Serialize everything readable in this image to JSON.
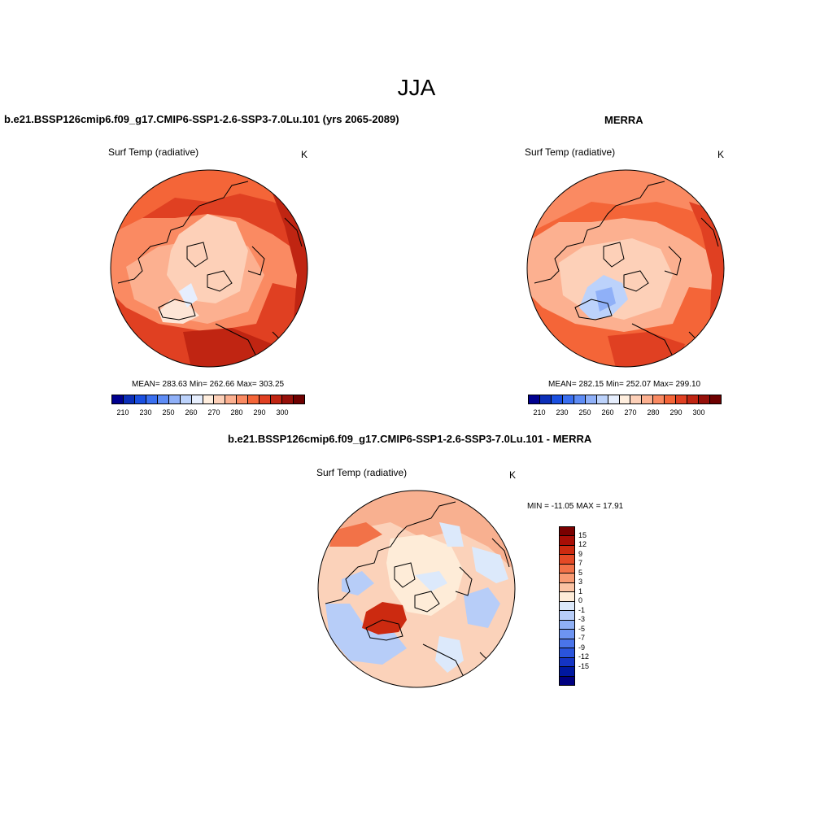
{
  "season": "JJA",
  "panels": [
    {
      "title": "b.e21.BSSP126cmip6.f09_g17.CMIP6-SSP1-2.6-SSP3-7.0Lu.101 (yrs 2065-2089)",
      "subtitle": "Surf Temp (radiative)",
      "units": "K",
      "stats": "MEAN= 283.63  Min= 262.66  Max= 303.25"
    },
    {
      "title": "MERRA",
      "subtitle": "Surf Temp (radiative)",
      "units": "K",
      "stats": "MEAN= 282.15  Min= 252.07  Max= 299.10"
    }
  ],
  "abs_colorbar": {
    "colors": [
      "#00008f",
      "#0c2fb8",
      "#1a4fe0",
      "#3a6ff0",
      "#5e8cf5",
      "#8fb0f8",
      "#bcd2fb",
      "#e6eefd",
      "#ffeede",
      "#fdd0b8",
      "#fcb090",
      "#fa8a62",
      "#f46538",
      "#e04022",
      "#c02512",
      "#96100a",
      "#6e0000"
    ],
    "labels": [
      "210",
      "230",
      "250",
      "260",
      "270",
      "280",
      "290",
      "300"
    ]
  },
  "diff_panel": {
    "title": "b.e21.BSSP126cmip6.f09_g17.CMIP6-SSP1-2.6-SSP3-7.0Lu.101 - MERRA",
    "subtitle": "Surf Temp (radiative)",
    "units": "K",
    "stats": "MIN = -11.05 MAX =  17.91"
  },
  "diff_colorbar": {
    "colors": [
      "#7a0000",
      "#a80e06",
      "#cc2a10",
      "#e44a26",
      "#f27248",
      "#f89a72",
      "#fbc3a3",
      "#feecd8",
      "#dce9fb",
      "#b7cdf8",
      "#8fb0f5",
      "#6d94f2",
      "#4a74ea",
      "#2a54dc",
      "#1434c4",
      "#0018a0",
      "#000080"
    ],
    "labels": [
      "15",
      "12",
      "9",
      "7",
      "5",
      "3",
      "1",
      "0",
      "-1",
      "-3",
      "-5",
      "-7",
      "-9",
      "-12",
      "-15"
    ]
  }
}
